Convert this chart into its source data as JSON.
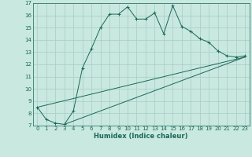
{
  "title": "",
  "xlabel": "Humidex (Indice chaleur)",
  "bg_color": "#c8e8e0",
  "grid_color": "#a8ccc4",
  "line_color": "#1a6858",
  "xlim": [
    -0.5,
    23.5
  ],
  "ylim": [
    7,
    17
  ],
  "yticks": [
    7,
    8,
    9,
    10,
    11,
    12,
    13,
    14,
    15,
    16,
    17
  ],
  "xticks": [
    0,
    1,
    2,
    3,
    4,
    5,
    6,
    7,
    8,
    9,
    10,
    11,
    12,
    13,
    14,
    15,
    16,
    17,
    18,
    19,
    20,
    21,
    22,
    23
  ],
  "series1_x": [
    0,
    1,
    2,
    3,
    4,
    5,
    6,
    7,
    8,
    9,
    10,
    11,
    12,
    13,
    14,
    15,
    16,
    17,
    18,
    19,
    20,
    21,
    22,
    23
  ],
  "series1_y": [
    8.5,
    7.5,
    7.2,
    7.1,
    8.2,
    11.7,
    13.3,
    15.0,
    16.1,
    16.1,
    16.7,
    15.7,
    15.7,
    16.2,
    14.5,
    16.8,
    15.1,
    14.7,
    14.1,
    13.8,
    13.1,
    12.7,
    12.6,
    12.7
  ],
  "line1_x": [
    0,
    23
  ],
  "line1_y": [
    8.5,
    12.6
  ],
  "line2_x": [
    3,
    23
  ],
  "line2_y": [
    7.1,
    12.6
  ]
}
